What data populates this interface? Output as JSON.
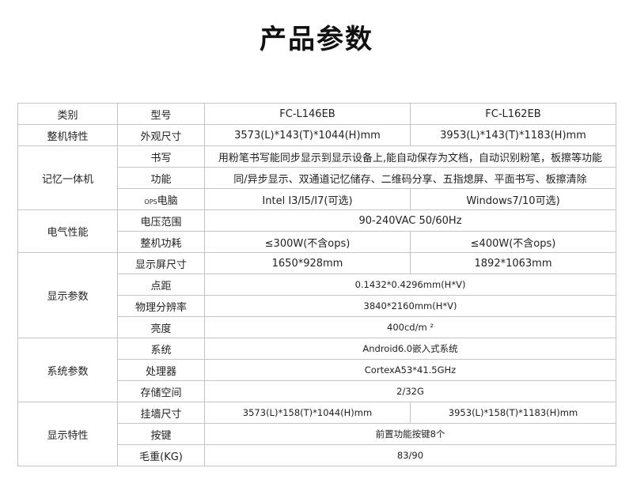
{
  "title": "产品参数",
  "header": {
    "category": "类别",
    "param": "型号",
    "models": [
      "FC-L146EB",
      "FC-L162EB"
    ]
  },
  "sections": [
    {
      "category": "整机特性",
      "rows": [
        {
          "param": "外观尺寸",
          "values": [
            "3573(L)*143(T)*1044(H)mm",
            "3953(L)*143(T)*1183(H)mm"
          ]
        }
      ]
    },
    {
      "category": "记忆一体机",
      "rows": [
        {
          "param": "书写",
          "values": [
            "用粉笔书写能同步显示到显示设备上,能自动保存为文档，自动识别粉笔，板擦等功能"
          ]
        },
        {
          "param": "功能",
          "values": [
            "同/异步显示、双通道记忆储存、二维码分享、五指熄屏、平面书写、板擦清除"
          ]
        },
        {
          "param": "电脑",
          "param_prefix": "OPS",
          "values": [
            "Intel I3/I5/I7(可选)",
            "Windows7/10可选)"
          ]
        }
      ]
    },
    {
      "category": "电气性能",
      "rows": [
        {
          "param": "电压范围",
          "values": [
            "90-240VAC  50/60Hz"
          ]
        },
        {
          "param": "整机功耗",
          "values": [
            "≤300W(不含ops)",
            "≤400W(不含ops)"
          ]
        }
      ]
    },
    {
      "category": "显示参数",
      "rows": [
        {
          "param": "显示屏尺寸",
          "values": [
            "1650*928mm",
            "1892*1063mm"
          ]
        },
        {
          "param": "点距",
          "values": [
            "0.1432*0.4296mm(H*V)"
          ],
          "small": true
        },
        {
          "param": "物理分辨率",
          "values": [
            "3840*2160mm(H*V)"
          ],
          "small": true
        },
        {
          "param": "亮度",
          "values": [
            "400cd/m ²"
          ],
          "small": true
        }
      ]
    },
    {
      "category": "系统参数",
      "rows": [
        {
          "param": "系统",
          "values": [
            "Android6.0嵌入式系统"
          ],
          "small": true
        },
        {
          "param": "处理器",
          "values": [
            "CortexA53*41.5GHz"
          ],
          "small": true
        },
        {
          "param": "存储空间",
          "values": [
            "2/32G"
          ],
          "small": true
        }
      ]
    },
    {
      "category": "显示特性",
      "rows": [
        {
          "param": "挂墙尺寸",
          "values": [
            "3573(L)*158(T)*1044(H)mm",
            "3953(L)*158(T)*1183(H)mm"
          ],
          "small": true
        },
        {
          "param": "按键",
          "values": [
            "前置功能按键8个"
          ],
          "small": true
        },
        {
          "param": "毛重(KG)",
          "values": [
            "83/90"
          ],
          "small": true
        }
      ]
    }
  ]
}
